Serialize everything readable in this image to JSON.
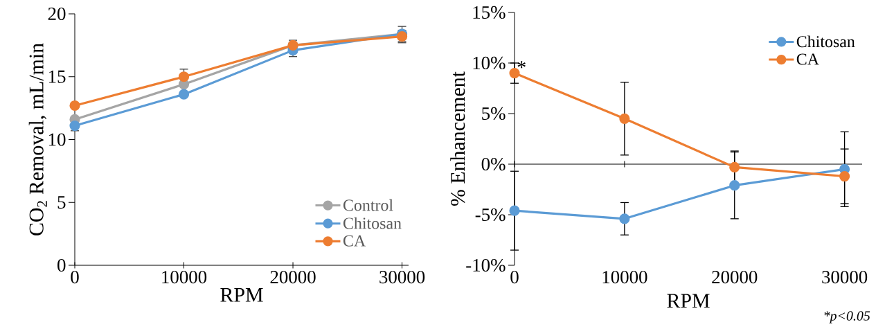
{
  "chart_data": [
    {
      "type": "line",
      "xlabel": "RPM",
      "ylabel": "CO$_{2}$ Removal, mL/min",
      "x": [
        0,
        10000,
        20000,
        30000
      ],
      "xlim": [
        0,
        30600
      ],
      "xticks": [
        0,
        10000,
        20000,
        30000
      ],
      "ylim": [
        0,
        20
      ],
      "yticks": [
        0,
        5,
        10,
        15,
        20
      ],
      "legend": "bottom right",
      "marker": "circle",
      "series": [
        {
          "name": "Control",
          "color": "#a5a5a5",
          "values": [
            11.6,
            14.4,
            17.5,
            18.4
          ],
          "errors": [
            null,
            null,
            null,
            0.6
          ]
        },
        {
          "name": "Chitosan",
          "color": "#5b9bd5",
          "values": [
            11.1,
            13.6,
            17.1,
            18.4
          ],
          "errors": [
            0.4,
            null,
            0.5,
            null
          ]
        },
        {
          "name": "CA",
          "color": "#ed7d31",
          "values": [
            12.7,
            15.0,
            17.5,
            18.2
          ],
          "errors": [
            null,
            0.6,
            0.4,
            0.5
          ]
        }
      ]
    },
    {
      "type": "line",
      "xlabel": "RPM",
      "ylabel": "% Enhancement",
      "x": [
        0,
        10000,
        20000,
        30000
      ],
      "xlim": [
        0,
        31600
      ],
      "xticks": [
        0,
        10000,
        20000,
        30000
      ],
      "ylim": [
        -10,
        15
      ],
      "yticks": [
        {
          "value": -10,
          "label": "-10%"
        },
        {
          "value": -5,
          "label": "-5%"
        },
        {
          "value": 0,
          "label": "0%"
        },
        {
          "value": 5,
          "label": "5%"
        },
        {
          "value": 10,
          "label": "10%"
        },
        {
          "value": 15,
          "label": "15%"
        }
      ],
      "legend": "top right",
      "marker": "circle",
      "annotations": [
        {
          "text": "*",
          "x": 0,
          "y": 9.0
        },
        "*p<0.05"
      ],
      "series": [
        {
          "name": "Chitosan",
          "color": "#5b9bd5",
          "values": [
            -4.6,
            -5.4,
            -2.1,
            -0.5
          ],
          "errors": [
            3.9,
            1.6,
            3.3,
            3.7
          ]
        },
        {
          "name": "CA",
          "color": "#ed7d31",
          "values": [
            9.0,
            4.5,
            -0.3,
            -1.2
          ],
          "errors": [
            1.0,
            3.6,
            1.6,
            2.7
          ]
        }
      ]
    }
  ]
}
